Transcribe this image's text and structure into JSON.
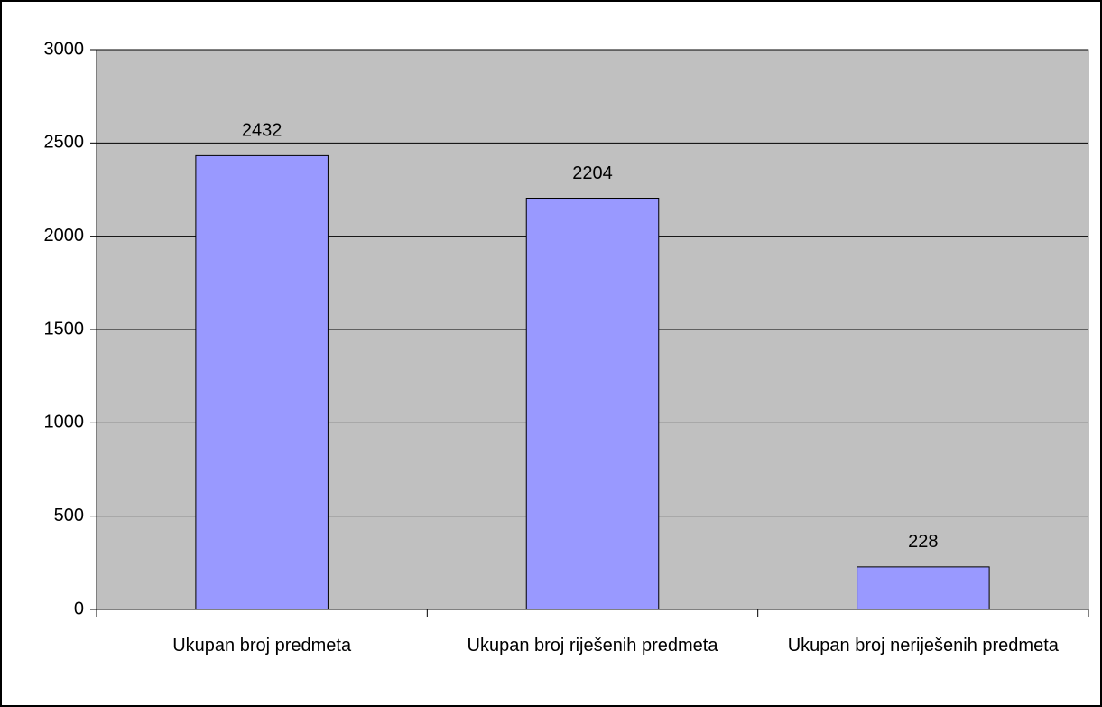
{
  "chart_data": {
    "type": "bar",
    "categories": [
      "Ukupan broj predmeta",
      "Ukupan broj riješenih predmeta",
      "Ukupan broj neriješenih predmeta"
    ],
    "values": [
      2432,
      2204,
      228
    ],
    "color": "#9999ff",
    "ylim": [
      0,
      3000
    ],
    "yticks": [
      0,
      500,
      1000,
      1500,
      2000,
      2500,
      3000
    ],
    "grid": true
  }
}
